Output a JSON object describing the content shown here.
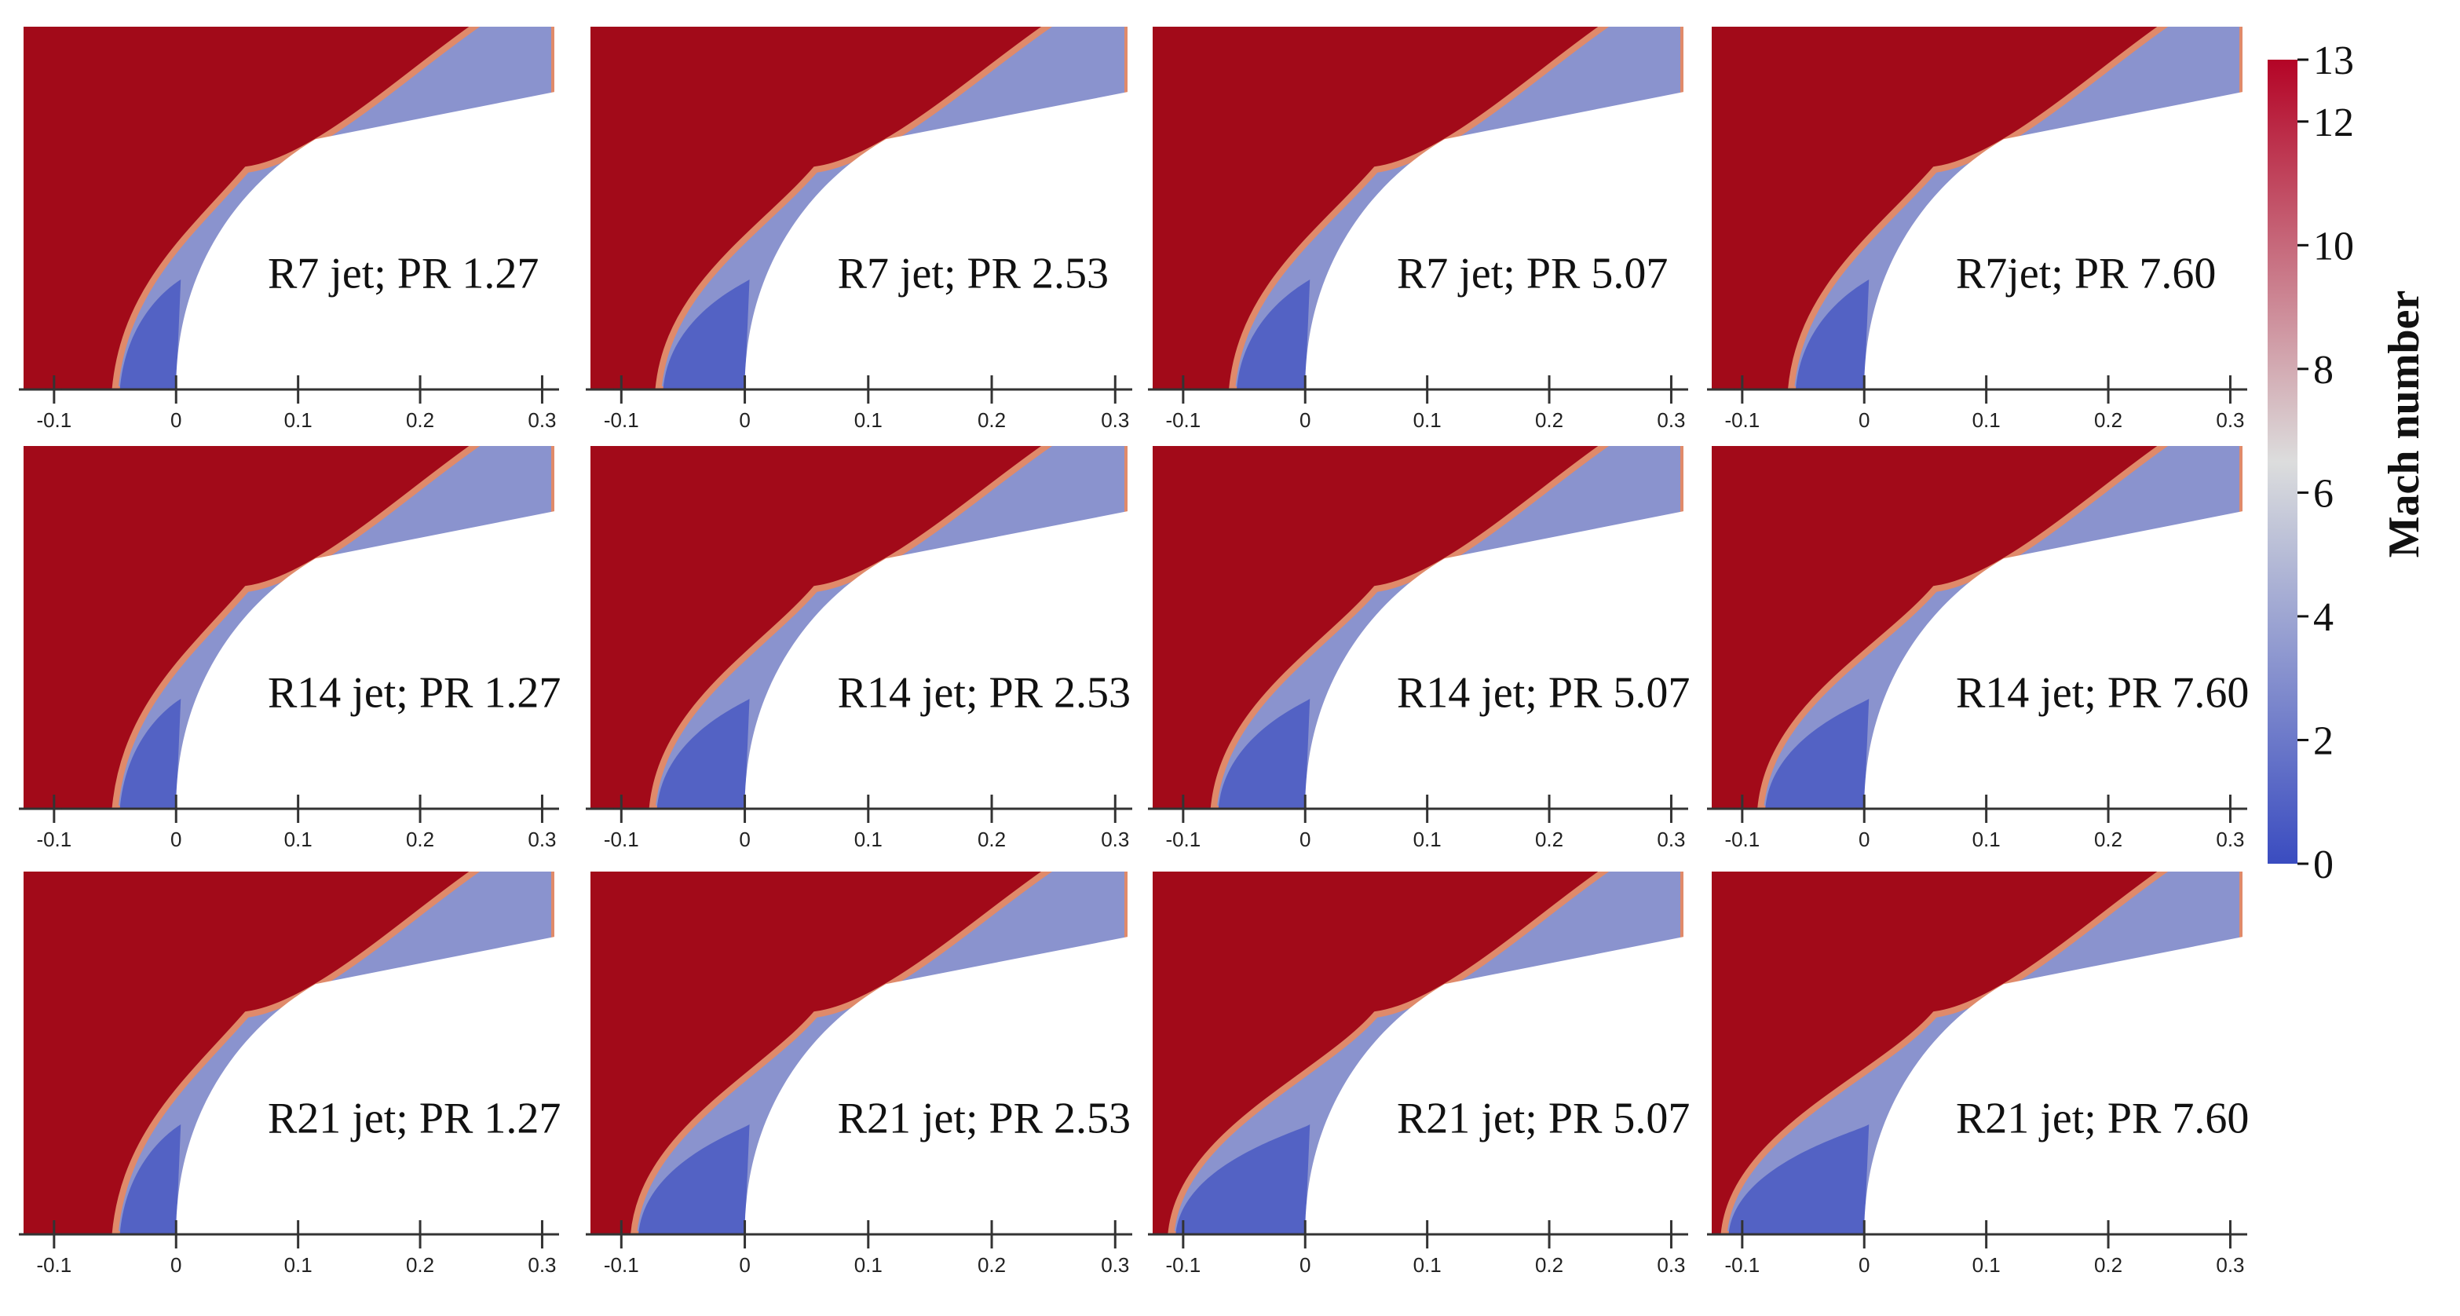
{
  "chart_data": {
    "type": "heatmap",
    "title": "",
    "colors": {
      "freestream": "#a20a19",
      "low": "#3a4cc0",
      "mid": "#dcdddd",
      "high": "#b40426",
      "body": "#ffffff"
    },
    "x_ticks": [
      "-0.1",
      "0",
      "0.1",
      "0.2",
      "0.3"
    ],
    "x_tick_values": [
      -0.1,
      0,
      0.1,
      0.2,
      0.3
    ],
    "xlim": [
      -0.125,
      0.31
    ],
    "colorbar": {
      "title": "Mach number",
      "ticks": [
        "0",
        "2",
        "4",
        "6",
        "8",
        "10",
        "12",
        "13"
      ],
      "tick_values": [
        0,
        2,
        4,
        6,
        8,
        10,
        12,
        13
      ],
      "range": [
        0,
        13
      ]
    },
    "panels": [
      {
        "label": "R7 jet; PR 1.27",
        "shock_standoff": 0.05
      },
      {
        "label": "R7 jet; PR 2.53",
        "shock_standoff": 0.07
      },
      {
        "label": "R7 jet; PR 5.07",
        "shock_standoff": 0.06
      },
      {
        "label": "R7jet; PR 7.60",
        "shock_standoff": 0.06
      },
      {
        "label": "R14 jet; PR 1.27",
        "shock_standoff": 0.05
      },
      {
        "label": "R14 jet; PR 2.53",
        "shock_standoff": 0.075
      },
      {
        "label": "R14 jet; PR 5.07",
        "shock_standoff": 0.075
      },
      {
        "label": "R14 jet; PR 7.60",
        "shock_standoff": 0.085
      },
      {
        "label": "R21 jet; PR 1.27",
        "shock_standoff": 0.05
      },
      {
        "label": "R21 jet; PR 2.53",
        "shock_standoff": 0.09
      },
      {
        "label": "R21 jet; PR 5.07",
        "shock_standoff": 0.11
      },
      {
        "label": "R21 jet; PR 7.60",
        "shock_standoff": 0.115
      }
    ]
  }
}
